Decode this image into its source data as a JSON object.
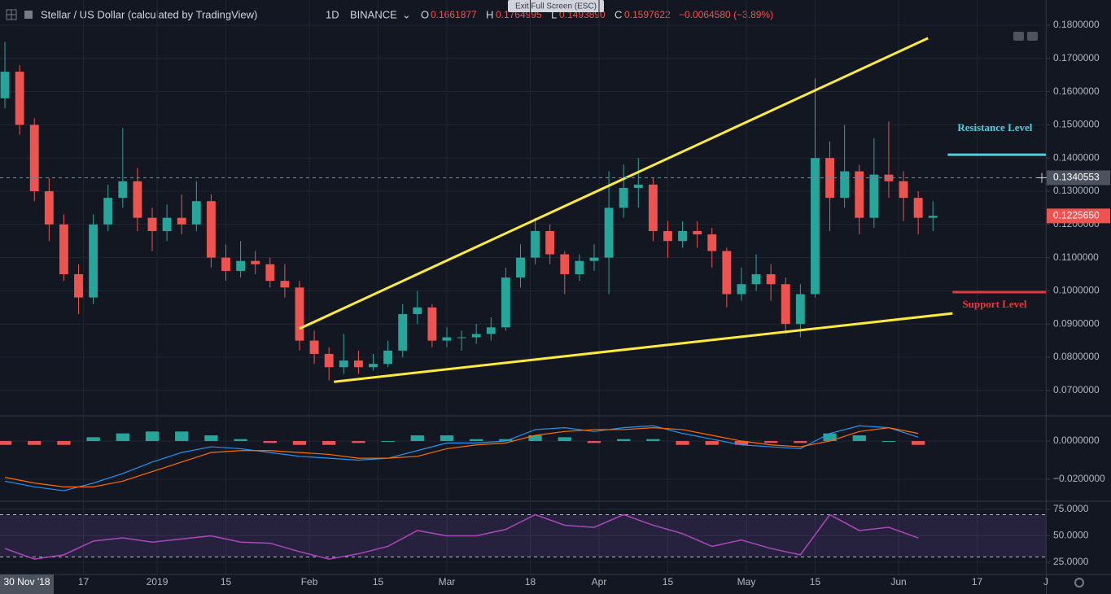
{
  "header": {
    "title": "Stellar / US Dollar (calculated by TradingView)",
    "interval": "1D",
    "exchange": "BINANCE",
    "open_label": "O",
    "open": "0.1661877",
    "high_label": "H",
    "high": "0.1764995",
    "low_label": "L",
    "low": "0.1493890",
    "close_label": "C",
    "close": "0.1597622",
    "change": "−0.0064580 (−3.89%)",
    "exit_button": "Exit Full Screen (ESC)"
  },
  "chart_data": [
    {
      "type": "candlestick",
      "up_color": "#26a69a",
      "down_color": "#ef5350",
      "grid": true,
      "xlim": [
        "2018-11-30",
        "2019-07-01"
      ],
      "ylim": [
        0.0626,
        0.1876
      ],
      "xticks": [
        {
          "value": "2018-12-17",
          "label": "17"
        },
        {
          "value": "2019-01-01",
          "label": "2019"
        },
        {
          "value": "2019-01-15",
          "label": "15"
        },
        {
          "value": "2019-02-01",
          "label": "Feb"
        },
        {
          "value": "2019-02-15",
          "label": "15"
        },
        {
          "value": "2019-03-01",
          "label": "Mar"
        },
        {
          "value": "2019-03-18",
          "label": "18"
        },
        {
          "value": "2019-04-01",
          "label": "Apr"
        },
        {
          "value": "2019-04-15",
          "label": "15"
        },
        {
          "value": "2019-05-01",
          "label": "May"
        },
        {
          "value": "2019-05-15",
          "label": "15"
        },
        {
          "value": "2019-06-01",
          "label": "Jun"
        },
        {
          "value": "2019-06-17",
          "label": "17"
        },
        {
          "value": "2019-07-01",
          "label": "J"
        }
      ],
      "yticks": [
        {
          "value": 0.07,
          "label": "0.0700000"
        },
        {
          "value": 0.08,
          "label": "0.0800000"
        },
        {
          "value": 0.09,
          "label": "0.0900000"
        },
        {
          "value": 0.1,
          "label": "0.1000000"
        },
        {
          "value": 0.11,
          "label": "0.1100000"
        },
        {
          "value": 0.12,
          "label": "0.1200000"
        },
        {
          "value": 0.13,
          "label": "0.1300000"
        },
        {
          "value": 0.14,
          "label": "0.1400000"
        },
        {
          "value": 0.15,
          "label": "0.1500000"
        },
        {
          "value": 0.16,
          "label": "0.1600000"
        },
        {
          "value": 0.17,
          "label": "0.1700000"
        },
        {
          "value": 0.18,
          "label": "0.1800000"
        }
      ],
      "x": [
        "2018-12-01",
        "2018-12-04",
        "2018-12-07",
        "2018-12-10",
        "2018-12-13",
        "2018-12-16",
        "2018-12-19",
        "2018-12-22",
        "2018-12-25",
        "2018-12-28",
        "2018-12-31",
        "2019-01-03",
        "2019-01-06",
        "2019-01-09",
        "2019-01-12",
        "2019-01-15",
        "2019-01-18",
        "2019-01-21",
        "2019-01-24",
        "2019-01-27",
        "2019-01-30",
        "2019-02-02",
        "2019-02-05",
        "2019-02-08",
        "2019-02-11",
        "2019-02-14",
        "2019-02-17",
        "2019-02-20",
        "2019-02-23",
        "2019-02-26",
        "2019-03-01",
        "2019-03-04",
        "2019-03-07",
        "2019-03-10",
        "2019-03-13",
        "2019-03-16",
        "2019-03-19",
        "2019-03-22",
        "2019-03-25",
        "2019-03-28",
        "2019-03-31",
        "2019-04-03",
        "2019-04-06",
        "2019-04-09",
        "2019-04-12",
        "2019-04-15",
        "2019-04-18",
        "2019-04-21",
        "2019-04-24",
        "2019-04-27",
        "2019-04-30",
        "2019-05-03",
        "2019-05-06",
        "2019-05-09",
        "2019-05-12",
        "2019-05-15",
        "2019-05-18",
        "2019-05-21",
        "2019-05-24",
        "2019-05-27",
        "2019-05-30",
        "2019-06-02",
        "2019-06-05",
        "2019-06-08"
      ],
      "open": [
        0.158,
        0.166,
        0.15,
        0.13,
        0.12,
        0.105,
        0.098,
        0.12,
        0.128,
        0.133,
        0.122,
        0.118,
        0.122,
        0.12,
        0.127,
        0.11,
        0.106,
        0.109,
        0.108,
        0.103,
        0.101,
        0.085,
        0.081,
        0.077,
        0.079,
        0.077,
        0.078,
        0.082,
        0.093,
        0.095,
        0.085,
        0.086,
        0.086,
        0.087,
        0.089,
        0.104,
        0.11,
        0.118,
        0.111,
        0.105,
        0.109,
        0.11,
        0.125,
        0.131,
        0.132,
        0.118,
        0.115,
        0.118,
        0.117,
        0.112,
        0.099,
        0.102,
        0.105,
        0.102,
        0.09,
        0.099,
        0.14,
        0.128,
        0.136,
        0.122,
        0.135,
        0.133,
        0.128,
        0.122
      ],
      "high": [
        0.175,
        0.168,
        0.152,
        0.134,
        0.123,
        0.108,
        0.123,
        0.132,
        0.149,
        0.137,
        0.125,
        0.126,
        0.129,
        0.133,
        0.129,
        0.114,
        0.115,
        0.112,
        0.11,
        0.108,
        0.103,
        0.088,
        0.083,
        0.087,
        0.082,
        0.081,
        0.085,
        0.096,
        0.1,
        0.096,
        0.089,
        0.088,
        0.09,
        0.092,
        0.107,
        0.114,
        0.122,
        0.12,
        0.112,
        0.111,
        0.114,
        0.136,
        0.138,
        0.14,
        0.134,
        0.121,
        0.121,
        0.121,
        0.119,
        0.113,
        0.107,
        0.111,
        0.108,
        0.104,
        0.102,
        0.164,
        0.145,
        0.15,
        0.138,
        0.146,
        0.151,
        0.136,
        0.13,
        0.127
      ],
      "low": [
        0.155,
        0.147,
        0.127,
        0.115,
        0.103,
        0.093,
        0.096,
        0.118,
        0.125,
        0.118,
        0.112,
        0.115,
        0.117,
        0.118,
        0.107,
        0.103,
        0.104,
        0.105,
        0.101,
        0.098,
        0.082,
        0.078,
        0.073,
        0.075,
        0.075,
        0.076,
        0.077,
        0.08,
        0.09,
        0.083,
        0.083,
        0.082,
        0.084,
        0.085,
        0.088,
        0.101,
        0.108,
        0.108,
        0.099,
        0.103,
        0.106,
        0.099,
        0.122,
        0.125,
        0.115,
        0.11,
        0.113,
        0.113,
        0.107,
        0.095,
        0.097,
        0.1,
        0.097,
        0.087,
        0.086,
        0.098,
        0.118,
        0.125,
        0.117,
        0.119,
        0.128,
        0.121,
        0.117,
        0.118
      ],
      "close": [
        0.166,
        0.15,
        0.13,
        0.12,
        0.105,
        0.098,
        0.12,
        0.128,
        0.133,
        0.122,
        0.118,
        0.122,
        0.12,
        0.127,
        0.11,
        0.106,
        0.109,
        0.108,
        0.103,
        0.101,
        0.085,
        0.081,
        0.077,
        0.079,
        0.077,
        0.078,
        0.082,
        0.093,
        0.095,
        0.085,
        0.086,
        0.086,
        0.087,
        0.089,
        0.104,
        0.11,
        0.118,
        0.111,
        0.105,
        0.109,
        0.11,
        0.125,
        0.131,
        0.132,
        0.118,
        0.115,
        0.118,
        0.117,
        0.112,
        0.099,
        0.102,
        0.105,
        0.102,
        0.09,
        0.099,
        0.14,
        0.128,
        0.136,
        0.122,
        0.135,
        0.133,
        0.128,
        0.122,
        0.1226
      ],
      "crosshair_value": 0.1340553,
      "crosshair_x": {
        "value": "2018-11-30",
        "label": "30 Nov '18"
      },
      "last_value": {
        "value": 0.122565,
        "label": "0.1225650"
      },
      "annotations": [
        {
          "color": "#ffeb3b",
          "x": [
            "2019-01-30",
            "2019-06-07"
          ],
          "y": [
            0.0886,
            0.1761
          ]
        },
        {
          "color": "#ffeb3b",
          "x": [
            "2019-02-06",
            "2019-06-12"
          ],
          "y": [
            0.0726,
            0.0932
          ]
        },
        {
          "color": "#4dd0e1",
          "label": "Resistance Level",
          "x": [
            "2019-06-11",
            "2019-07-01"
          ],
          "y": [
            0.141,
            0.141
          ]
        },
        {
          "color": "#e53935",
          "label": "Support Level",
          "x": [
            "2019-06-12",
            "2019-07-01"
          ],
          "y": [
            0.0996,
            0.0996
          ]
        }
      ]
    },
    {
      "type": "macd",
      "ylim": [
        -0.0311,
        0.0128
      ],
      "grid": true,
      "yticks": [
        {
          "value": -0.02,
          "label": "−0.0200000"
        },
        {
          "value": 0,
          "label": "0.0000000"
        }
      ],
      "x": [
        "2018-12-01",
        "2018-12-07",
        "2018-12-13",
        "2018-12-19",
        "2018-12-25",
        "2018-12-31",
        "2019-01-06",
        "2019-01-12",
        "2019-01-18",
        "2019-01-24",
        "2019-01-30",
        "2019-02-05",
        "2019-02-11",
        "2019-02-17",
        "2019-02-23",
        "2019-03-01",
        "2019-03-07",
        "2019-03-13",
        "2019-03-19",
        "2019-03-25",
        "2019-03-31",
        "2019-04-06",
        "2019-04-12",
        "2019-04-18",
        "2019-04-24",
        "2019-04-30",
        "2019-05-06",
        "2019-05-12",
        "2019-05-18",
        "2019-05-24",
        "2019-05-30",
        "2019-06-05"
      ],
      "histogram": [
        -0.002,
        -0.002,
        -0.002,
        0.002,
        0.004,
        0.005,
        0.005,
        0.003,
        0.001,
        -0.001,
        -0.002,
        -0.002,
        -0.001,
        0.0,
        0.003,
        0.003,
        0.001,
        0.001,
        0.003,
        0.002,
        -0.001,
        0.001,
        0.001,
        -0.002,
        -0.002,
        -0.002,
        -0.001,
        -0.001,
        0.004,
        0.003,
        0.0,
        -0.002
      ],
      "histogram_colors": [
        "#26a69a",
        "#ef5350"
      ],
      "series": [
        {
          "color": "#2196f3",
          "values": [
            -0.021,
            -0.024,
            -0.026,
            -0.022,
            -0.017,
            -0.011,
            -0.006,
            -0.003,
            -0.004,
            -0.006,
            -0.008,
            -0.009,
            -0.01,
            -0.009,
            -0.005,
            -0.001,
            -0.001,
            0.0,
            0.006,
            0.007,
            0.005,
            0.007,
            0.008,
            0.004,
            0.001,
            -0.002,
            -0.003,
            -0.004,
            0.004,
            0.008,
            0.007,
            0.002
          ]
        },
        {
          "color": "#ff6d00",
          "values": [
            -0.019,
            -0.022,
            -0.024,
            -0.024,
            -0.021,
            -0.016,
            -0.011,
            -0.006,
            -0.005,
            -0.005,
            -0.006,
            -0.007,
            -0.009,
            -0.009,
            -0.008,
            -0.004,
            -0.002,
            -0.001,
            0.003,
            0.005,
            0.006,
            0.006,
            0.007,
            0.006,
            0.003,
            0.0,
            -0.002,
            -0.003,
            0.0,
            0.005,
            0.007,
            0.004
          ]
        }
      ]
    },
    {
      "type": "rsi",
      "ylim": [
        14.2,
        81.9
      ],
      "grid": true,
      "color": "#ab47bc",
      "bands": [
        30,
        70
      ],
      "yticks": [
        {
          "value": 25,
          "label": "25.0000"
        },
        {
          "value": 50,
          "label": "50.0000"
        },
        {
          "value": 75,
          "label": "75.0000"
        }
      ],
      "x": [
        "2018-12-01",
        "2018-12-07",
        "2018-12-13",
        "2018-12-19",
        "2018-12-25",
        "2018-12-31",
        "2019-01-06",
        "2019-01-12",
        "2019-01-18",
        "2019-01-24",
        "2019-01-30",
        "2019-02-05",
        "2019-02-11",
        "2019-02-17",
        "2019-02-23",
        "2019-03-01",
        "2019-03-07",
        "2019-03-13",
        "2019-03-19",
        "2019-03-25",
        "2019-03-31",
        "2019-04-06",
        "2019-04-12",
        "2019-04-18",
        "2019-04-24",
        "2019-04-30",
        "2019-05-06",
        "2019-05-12",
        "2019-05-18",
        "2019-05-24",
        "2019-05-30",
        "2019-06-05"
      ],
      "values": [
        38,
        28,
        32,
        45,
        48,
        44,
        47,
        50,
        44,
        43,
        35,
        28,
        33,
        40,
        55,
        50,
        50,
        56,
        70,
        60,
        58,
        70,
        60,
        52,
        40,
        46,
        38,
        32,
        70,
        55,
        58,
        48
      ]
    }
  ]
}
